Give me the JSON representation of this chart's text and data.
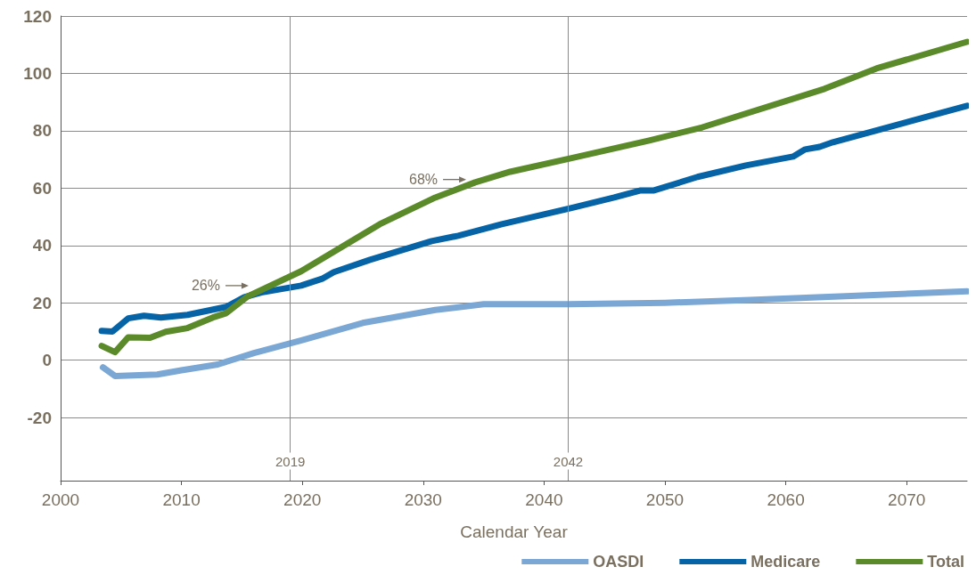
{
  "chart_data": {
    "type": "line",
    "xlabel": "Calendar Year",
    "xlim": [
      2000,
      2075
    ],
    "xticks": [
      2000,
      2010,
      2020,
      2030,
      2040,
      2050,
      2060,
      2070
    ],
    "ylim": [
      -42,
      120
    ],
    "yticks": [
      -20,
      0,
      20,
      40,
      60,
      80,
      100,
      120
    ],
    "grid": "y",
    "legend": "bottom right",
    "marker": "none",
    "line_style": "solid",
    "series": [
      {
        "name": "OASDI",
        "color": "#7ba7d4",
        "x": [
          2003.5,
          2004.5,
          2008,
          2010,
          2013,
          2016,
          2020,
          2025,
          2031,
          2035,
          2042,
          2050,
          2057,
          2075
        ],
        "values": [
          -2.5,
          -5.5,
          -5,
          -3.5,
          -1.5,
          2.5,
          7,
          13,
          17.5,
          19.5,
          19.5,
          20,
          21,
          24
        ]
      },
      {
        "name": "Medicare",
        "color": "#0563a6",
        "x": [
          2003.4,
          2004.3,
          2005.6,
          2006.9,
          2008.3,
          2010.5,
          2013.7,
          2015.2,
          2016.6,
          2019.9,
          2021.7,
          2022.6,
          2025.6,
          2030.7,
          2032.9,
          2036.5,
          2042.2,
          2045.8,
          2048,
          2049.1,
          2052.7,
          2056.7,
          2060.6,
          2061.6,
          2062.8,
          2063.9,
          2075
        ],
        "values": [
          10.2,
          10,
          14.6,
          15.5,
          14.9,
          15.8,
          18.6,
          22,
          23.6,
          26,
          28.5,
          30.7,
          35,
          41.5,
          43.4,
          47.4,
          53,
          56.7,
          59.2,
          59.2,
          63.9,
          67.9,
          71,
          73.5,
          74.4,
          76,
          88.7
        ]
      },
      {
        "name": "Total",
        "color": "#5a8a2a",
        "x": [
          2003.4,
          2004.5,
          2005.6,
          2007.4,
          2008.7,
          2010.5,
          2012.6,
          2013.7,
          2015.5,
          2019.9,
          2026.4,
          2031,
          2034.3,
          2037.2,
          2042.2,
          2048.7,
          2053.1,
          2063.2,
          2067.5,
          2075
        ],
        "values": [
          5,
          2.8,
          8,
          7.8,
          9.9,
          11.2,
          14.9,
          16.4,
          22.3,
          31,
          47.4,
          56.7,
          62,
          65.7,
          70.4,
          76.6,
          81.2,
          94.6,
          101.7,
          111
        ]
      }
    ],
    "ref_lines": [
      {
        "axis": "x",
        "value": 2019,
        "label": "2019",
        "color": "#8a8a8a"
      },
      {
        "axis": "x",
        "value": 2042,
        "label": "2042",
        "color": "#8a8a8a"
      }
    ],
    "annotations": [
      {
        "text": "26%",
        "x": 2016,
        "y": 26
      },
      {
        "text": "68%",
        "x": 2034,
        "y": 63
      }
    ]
  }
}
